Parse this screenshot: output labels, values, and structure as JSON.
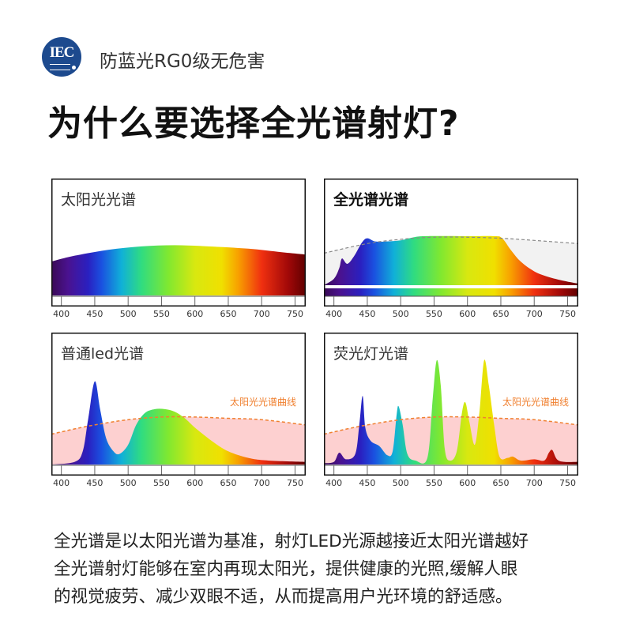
{
  "badge": {
    "logo_text": "IEC",
    "text": "防蓝光RG0级无危害",
    "logo_color": "#1d4a8e"
  },
  "headline": "为什么要选择全光谱射灯?",
  "reference_color": "#f08030",
  "spectrum_gradient": [
    {
      "nm": 385,
      "color": "#3a0a55"
    },
    {
      "nm": 410,
      "color": "#4a1290"
    },
    {
      "nm": 440,
      "color": "#2a20c0"
    },
    {
      "nm": 460,
      "color": "#1a50e0"
    },
    {
      "nm": 490,
      "color": "#10b0d8"
    },
    {
      "nm": 520,
      "color": "#30dc80"
    },
    {
      "nm": 560,
      "color": "#80e830"
    },
    {
      "nm": 600,
      "color": "#d8e810"
    },
    {
      "nm": 640,
      "color": "#f0e000"
    },
    {
      "nm": 665,
      "color": "#f8a000"
    },
    {
      "nm": 700,
      "color": "#f03010"
    },
    {
      "nm": 740,
      "color": "#a00808"
    },
    {
      "nm": 766,
      "color": "#600000"
    }
  ],
  "chart_data": [
    {
      "type": "area",
      "title": "太阳光光谱",
      "xlabel": "",
      "ylabel": "",
      "xlim": [
        385,
        766
      ],
      "ticks": [
        400,
        450,
        500,
        550,
        600,
        650,
        700,
        750
      ],
      "spectrum": [
        [
          385,
          0.29
        ],
        [
          420,
          0.34
        ],
        [
          470,
          0.39
        ],
        [
          520,
          0.42
        ],
        [
          570,
          0.43
        ],
        [
          620,
          0.42
        ],
        [
          680,
          0.4
        ],
        [
          730,
          0.37
        ],
        [
          766,
          0.35
        ]
      ]
    },
    {
      "type": "area",
      "title": "全光谱光谱",
      "xlabel": "",
      "ylabel": "",
      "xlim": [
        385,
        766
      ],
      "ticks": [
        400,
        450,
        500,
        550,
        600,
        650,
        700,
        750
      ],
      "color_bar": true,
      "reference": [
        [
          385,
          0.3
        ],
        [
          450,
          0.39
        ],
        [
          500,
          0.43
        ],
        [
          550,
          0.45
        ],
        [
          600,
          0.45
        ],
        [
          650,
          0.44
        ],
        [
          700,
          0.42
        ],
        [
          766,
          0.39
        ]
      ],
      "spectrum": [
        [
          385,
          0.0
        ],
        [
          400,
          0.06
        ],
        [
          408,
          0.16
        ],
        [
          412,
          0.25
        ],
        [
          420,
          0.2
        ],
        [
          430,
          0.27
        ],
        [
          442,
          0.4
        ],
        [
          450,
          0.44
        ],
        [
          462,
          0.41
        ],
        [
          480,
          0.41
        ],
        [
          500,
          0.42
        ],
        [
          520,
          0.45
        ],
        [
          540,
          0.46
        ],
        [
          600,
          0.46
        ],
        [
          640,
          0.46
        ],
        [
          652,
          0.44
        ],
        [
          665,
          0.33
        ],
        [
          680,
          0.22
        ],
        [
          700,
          0.13
        ],
        [
          720,
          0.08
        ],
        [
          745,
          0.04
        ],
        [
          766,
          0.015
        ]
      ]
    },
    {
      "type": "area",
      "title": "普通led光谱",
      "xlabel": "",
      "ylabel": "",
      "xlim": [
        385,
        766
      ],
      "ticks": [
        400,
        450,
        500,
        550,
        600,
        650,
        700,
        750
      ],
      "reference_label": "太阳光光谱曲线",
      "reference": [
        [
          385,
          0.23
        ],
        [
          420,
          0.27
        ],
        [
          450,
          0.3
        ],
        [
          500,
          0.34
        ],
        [
          550,
          0.36
        ],
        [
          600,
          0.36
        ],
        [
          650,
          0.35
        ],
        [
          700,
          0.34
        ],
        [
          766,
          0.3
        ]
      ],
      "spectrum": [
        [
          385,
          0.0
        ],
        [
          420,
          0.02
        ],
        [
          432,
          0.1
        ],
        [
          440,
          0.34
        ],
        [
          450,
          0.63
        ],
        [
          458,
          0.42
        ],
        [
          467,
          0.2
        ],
        [
          478,
          0.1
        ],
        [
          487,
          0.08
        ],
        [
          500,
          0.15
        ],
        [
          512,
          0.3
        ],
        [
          525,
          0.39
        ],
        [
          540,
          0.42
        ],
        [
          555,
          0.42
        ],
        [
          570,
          0.4
        ],
        [
          585,
          0.35
        ],
        [
          600,
          0.28
        ],
        [
          625,
          0.18
        ],
        [
          650,
          0.1
        ],
        [
          680,
          0.05
        ],
        [
          710,
          0.03
        ],
        [
          766,
          0.02
        ]
      ]
    },
    {
      "type": "area",
      "title": "荧光灯光谱",
      "xlabel": "",
      "ylabel": "",
      "xlim": [
        385,
        766
      ],
      "ticks": [
        400,
        450,
        500,
        550,
        600,
        650,
        700,
        750
      ],
      "reference_label": "太阳光光谱曲线",
      "reference": [
        [
          385,
          0.23
        ],
        [
          420,
          0.27
        ],
        [
          450,
          0.3
        ],
        [
          500,
          0.34
        ],
        [
          550,
          0.36
        ],
        [
          600,
          0.36
        ],
        [
          650,
          0.35
        ],
        [
          700,
          0.34
        ],
        [
          766,
          0.3
        ]
      ],
      "spectrum": [
        [
          385,
          0.01
        ],
        [
          400,
          0.02
        ],
        [
          408,
          0.09
        ],
        [
          418,
          0.04
        ],
        [
          432,
          0.08
        ],
        [
          438,
          0.3
        ],
        [
          443,
          0.52
        ],
        [
          447,
          0.28
        ],
        [
          455,
          0.18
        ],
        [
          468,
          0.14
        ],
        [
          480,
          0.07
        ],
        [
          488,
          0.1
        ],
        [
          494,
          0.38
        ],
        [
          497,
          0.44
        ],
        [
          503,
          0.3
        ],
        [
          510,
          0.08
        ],
        [
          522,
          0.03
        ],
        [
          540,
          0.05
        ],
        [
          548,
          0.5
        ],
        [
          554,
          0.79
        ],
        [
          560,
          0.6
        ],
        [
          566,
          0.12
        ],
        [
          574,
          0.03
        ],
        [
          584,
          0.1
        ],
        [
          592,
          0.4
        ],
        [
          597,
          0.47
        ],
        [
          603,
          0.32
        ],
        [
          611,
          0.15
        ],
        [
          618,
          0.4
        ],
        [
          625,
          0.79
        ],
        [
          632,
          0.6
        ],
        [
          640,
          0.3
        ],
        [
          648,
          0.06
        ],
        [
          660,
          0.05
        ],
        [
          668,
          0.06
        ],
        [
          680,
          0.03
        ],
        [
          700,
          0.04
        ],
        [
          715,
          0.03
        ],
        [
          722,
          0.09
        ],
        [
          727,
          0.11
        ],
        [
          734,
          0.04
        ],
        [
          745,
          0.02
        ],
        [
          766,
          0.02
        ]
      ]
    }
  ],
  "description": {
    "lines": [
      "全光谱是以太阳光谱为基准，射灯LED光源越接近太阳光谱越好",
      "全光谱射灯能够在室内再现太阳光，提供健康的光照,缓解人眼",
      "的视觉疲劳、减少双眼不适，从而提高用户光环境的舒适感。"
    ]
  }
}
